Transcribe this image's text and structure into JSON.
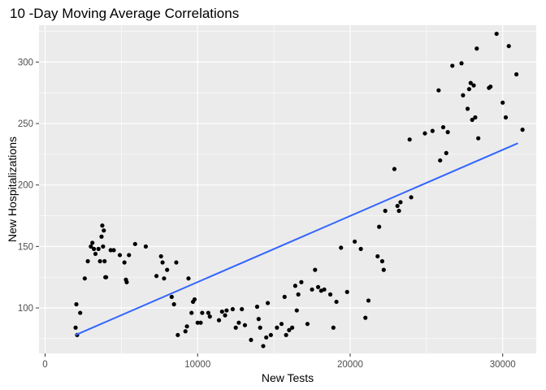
{
  "chart_data": {
    "type": "scatter",
    "title": "10 -Day Moving Average Correlations",
    "xlabel": "New Tests",
    "ylabel": "New Hospitalizations",
    "xlim": [
      -400,
      32200
    ],
    "ylim": [
      63,
      330
    ],
    "x_ticks": [
      0,
      10000,
      20000,
      30000
    ],
    "x_tick_labels": [
      "0",
      "10000",
      "20000",
      "30000"
    ],
    "y_ticks": [
      100,
      150,
      200,
      250,
      300
    ],
    "y_tick_labels": [
      "100",
      "150",
      "200",
      "250",
      "300"
    ],
    "grid": true,
    "legend": "none",
    "colors": {
      "panel": "#EBEBEB",
      "grid": "#FFFFFF",
      "points": "#000000",
      "trend": "#3366FF"
    },
    "series": [
      {
        "type": "scatter",
        "points": [
          [
            2000,
            84
          ],
          [
            2100,
            78
          ],
          [
            2050,
            103
          ],
          [
            2300,
            96
          ],
          [
            2600,
            124
          ],
          [
            2800,
            138
          ],
          [
            3000,
            150
          ],
          [
            3100,
            153
          ],
          [
            3200,
            148
          ],
          [
            3300,
            144
          ],
          [
            3500,
            148
          ],
          [
            3600,
            138
          ],
          [
            3700,
            158
          ],
          [
            3750,
            167
          ],
          [
            3800,
            150
          ],
          [
            3850,
            163
          ],
          [
            3900,
            138
          ],
          [
            3950,
            125
          ],
          [
            4000,
            125
          ],
          [
            4300,
            147
          ],
          [
            4500,
            147
          ],
          [
            4900,
            143
          ],
          [
            5200,
            137
          ],
          [
            5300,
            123
          ],
          [
            5350,
            121
          ],
          [
            5500,
            143
          ],
          [
            5900,
            152
          ],
          [
            6600,
            150
          ],
          [
            7300,
            126
          ],
          [
            7600,
            142
          ],
          [
            7700,
            137
          ],
          [
            7800,
            124
          ],
          [
            8000,
            131
          ],
          [
            8300,
            109
          ],
          [
            8450,
            103
          ],
          [
            8600,
            137
          ],
          [
            8700,
            78
          ],
          [
            9200,
            81
          ],
          [
            9300,
            85
          ],
          [
            9400,
            124
          ],
          [
            9600,
            96
          ],
          [
            9700,
            105
          ],
          [
            9800,
            107
          ],
          [
            10000,
            88
          ],
          [
            10200,
            88
          ],
          [
            10300,
            96
          ],
          [
            10700,
            96
          ],
          [
            10800,
            93
          ],
          [
            11400,
            90
          ],
          [
            11600,
            97
          ],
          [
            11800,
            94
          ],
          [
            11900,
            98
          ],
          [
            12300,
            99
          ],
          [
            12500,
            84
          ],
          [
            12700,
            88
          ],
          [
            12900,
            99
          ],
          [
            13100,
            86
          ],
          [
            13500,
            74
          ],
          [
            13900,
            101
          ],
          [
            14000,
            91
          ],
          [
            14100,
            84
          ],
          [
            14300,
            69
          ],
          [
            14500,
            76
          ],
          [
            14600,
            104
          ],
          [
            14800,
            78
          ],
          [
            15200,
            84
          ],
          [
            15500,
            87
          ],
          [
            15700,
            109
          ],
          [
            15800,
            78
          ],
          [
            16000,
            82
          ],
          [
            16200,
            84
          ],
          [
            16400,
            118
          ],
          [
            16500,
            98
          ],
          [
            16600,
            111
          ],
          [
            16800,
            121
          ],
          [
            17200,
            87
          ],
          [
            17500,
            115
          ],
          [
            17700,
            131
          ],
          [
            17900,
            117
          ],
          [
            18100,
            114
          ],
          [
            18300,
            115
          ],
          [
            18700,
            111
          ],
          [
            18900,
            84
          ],
          [
            19100,
            105
          ],
          [
            19400,
            149
          ],
          [
            19800,
            113
          ],
          [
            20300,
            154
          ],
          [
            20700,
            148
          ],
          [
            21000,
            92
          ],
          [
            21200,
            106
          ],
          [
            21800,
            142
          ],
          [
            21900,
            166
          ],
          [
            22100,
            138
          ],
          [
            22200,
            131
          ],
          [
            22300,
            179
          ],
          [
            22900,
            213
          ],
          [
            23100,
            183
          ],
          [
            23200,
            179
          ],
          [
            23300,
            186
          ],
          [
            23900,
            237
          ],
          [
            24000,
            190
          ],
          [
            24900,
            242
          ],
          [
            25400,
            244
          ],
          [
            25800,
            277
          ],
          [
            25900,
            220
          ],
          [
            26100,
            247
          ],
          [
            26300,
            226
          ],
          [
            26400,
            243
          ],
          [
            26700,
            297
          ],
          [
            27300,
            299
          ],
          [
            27400,
            273
          ],
          [
            27700,
            262
          ],
          [
            27800,
            278
          ],
          [
            27900,
            283
          ],
          [
            28000,
            253
          ],
          [
            28100,
            281
          ],
          [
            28200,
            255
          ],
          [
            28300,
            311
          ],
          [
            28400,
            238
          ],
          [
            29100,
            279
          ],
          [
            29200,
            280
          ],
          [
            29600,
            323
          ],
          [
            30000,
            267
          ],
          [
            30200,
            255
          ],
          [
            30400,
            313
          ],
          [
            30900,
            290
          ],
          [
            31300,
            245
          ]
        ]
      },
      {
        "type": "line",
        "method": "linear fit",
        "points": [
          [
            2000,
            78
          ],
          [
            31000,
            234
          ]
        ]
      }
    ]
  }
}
